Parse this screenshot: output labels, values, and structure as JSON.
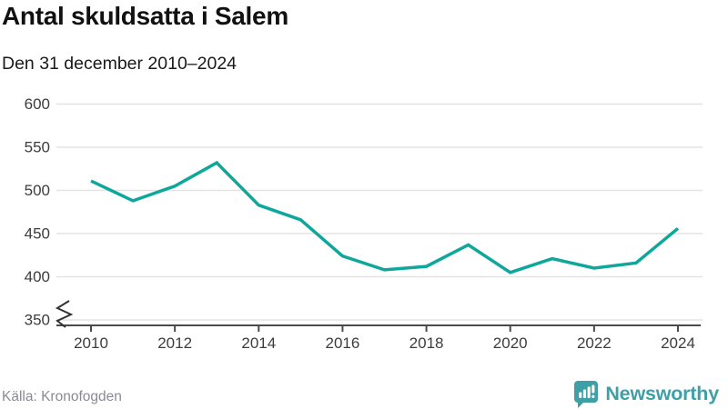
{
  "header": {
    "title": "Antal skuldsatta i Salem",
    "subtitle": "Den 31 december 2010–2024"
  },
  "footer": {
    "source": "Källa: Kronofogden",
    "brand_name": "Newsworthy",
    "brand_icon": "speech-bubble-bar-chart-icon"
  },
  "colors": {
    "line": "#0fa79c",
    "brand": "#3f9fa7",
    "grid": "#e3e3e3",
    "axis": "#4a4a4a",
    "tick_text": "#3d3d3d"
  },
  "chart_data": {
    "type": "line",
    "title": "Antal skuldsatta i Salem",
    "subtitle": "Den 31 december 2010–2024",
    "x": [
      2010,
      2011,
      2012,
      2013,
      2014,
      2015,
      2016,
      2017,
      2018,
      2019,
      2020,
      2021,
      2022,
      2023,
      2024
    ],
    "values": [
      511,
      488,
      505,
      532,
      483,
      466,
      424,
      408,
      412,
      437,
      405,
      421,
      410,
      416,
      456
    ],
    "series_name": "Antal skuldsatta",
    "xlabel": "",
    "ylabel": "",
    "ylim": [
      350,
      600
    ],
    "yticks": [
      350,
      400,
      450,
      500,
      550,
      600
    ],
    "xticks": [
      2010,
      2012,
      2014,
      2016,
      2018,
      2020,
      2022,
      2024
    ],
    "grid": true,
    "legend": "none",
    "axis_break": true,
    "line_width": 3.5
  }
}
